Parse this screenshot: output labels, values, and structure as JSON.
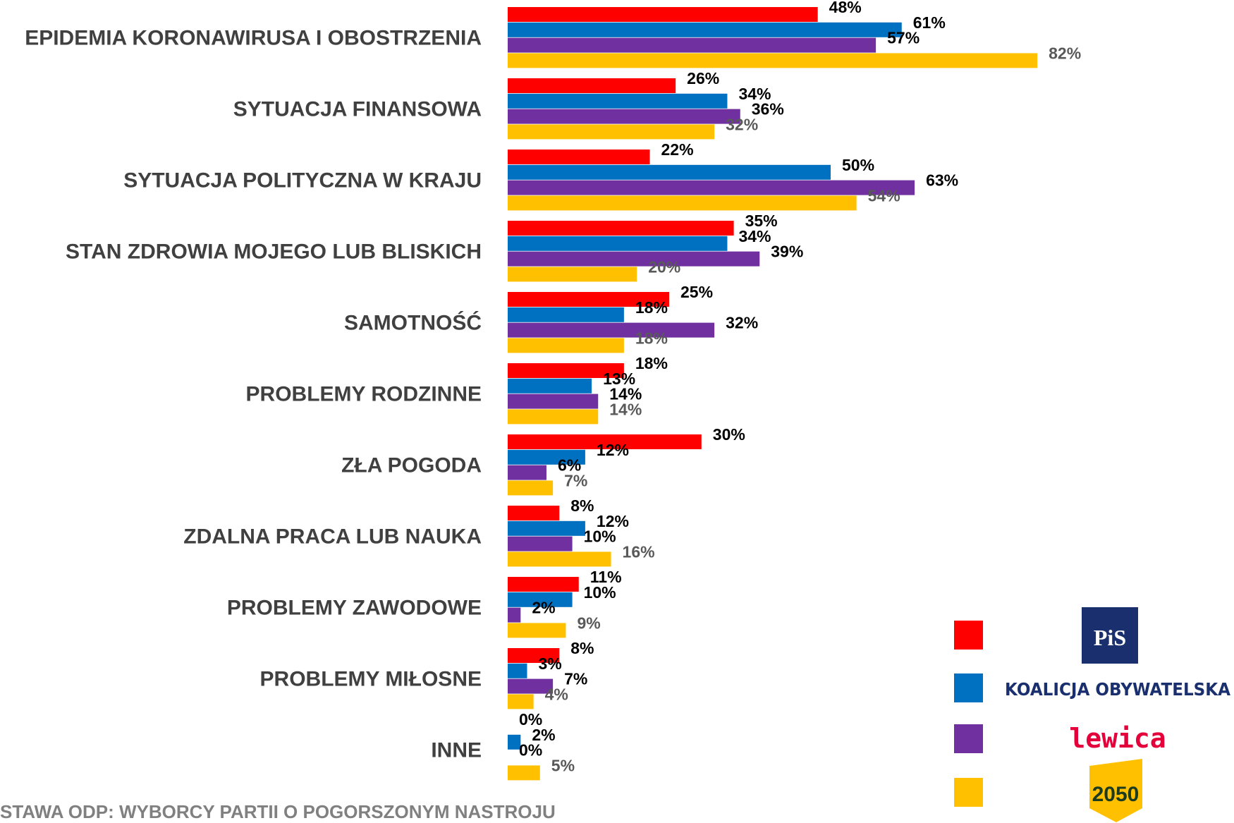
{
  "chart_data": {
    "type": "bar",
    "orientation": "horizontal",
    "categories": [
      "EPIDEMIA KORONAWIRUSA I OBOSTRZENIA",
      "SYTUACJA FINANSOWA",
      "SYTUACJA POLITYCZNA W KRAJU",
      "STAN ZDROWIA MOJEGO LUB BLISKICH",
      "SAMOTNOŚĆ",
      "PROBLEMY RODZINNE",
      "ZŁA POGODA",
      "ZDALNA PRACA LUB NAUKA",
      "PROBLEMY ZAWODOWE",
      "PROBLEMY MIŁOSNE",
      "INNE"
    ],
    "series": [
      {
        "name": "PiS",
        "color": "#ff0000",
        "values": [
          48,
          26,
          22,
          35,
          25,
          18,
          30,
          8,
          11,
          8,
          0
        ],
        "value_labels": [
          "48%",
          "26%",
          "22%",
          "35%",
          "25%",
          "18%",
          "30%",
          "8%",
          "11%",
          "8%",
          "0%"
        ]
      },
      {
        "name": "KOALICJA OBYWATELSKA",
        "color": "#0070c0",
        "values": [
          61,
          34,
          50,
          34,
          18,
          13,
          12,
          12,
          10,
          3,
          2
        ],
        "value_labels": [
          "61%",
          "34%",
          "50%",
          "34%",
          "18%",
          "13%",
          "12%",
          "12%",
          "10%",
          "3%",
          "2%"
        ]
      },
      {
        "name": "lewica",
        "color": "#7030a0",
        "values": [
          57,
          36,
          63,
          39,
          32,
          14,
          6,
          10,
          2,
          7,
          0
        ],
        "value_labels": [
          "57%",
          "36%",
          "63%",
          "39%",
          "32%",
          "14%",
          "6%",
          "10%",
          "2%",
          "7%",
          "0%"
        ]
      },
      {
        "name": "2050",
        "color": "#ffc000",
        "values": [
          82,
          32,
          54,
          20,
          18,
          14,
          7,
          16,
          9,
          4,
          5
        ],
        "value_labels": [
          "82%",
          "32%",
          "54%",
          "20%",
          "18%",
          "14%",
          "7%",
          "16%",
          "9%",
          "4%",
          "5%"
        ]
      }
    ],
    "footnote": "STAWA ODP: WYBORCY PARTII O POGORSZONYM NASTROJU"
  }
}
